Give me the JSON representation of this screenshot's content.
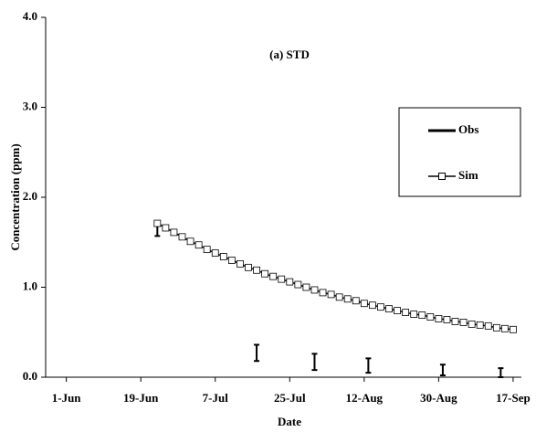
{
  "chart_data": {
    "type": "line",
    "title": "(a) STD",
    "x_label": "Date",
    "y_label": "Concentration (ppm)",
    "xlim": [
      147,
      262
    ],
    "ylim": [
      0,
      4
    ],
    "xticks": [
      {
        "value": 152,
        "label": "1-Jun"
      },
      {
        "value": 170,
        "label": "19-Jun"
      },
      {
        "value": 188,
        "label": "7-Jul"
      },
      {
        "value": 206,
        "label": "25-Jul"
      },
      {
        "value": 224,
        "label": "12-Aug"
      },
      {
        "value": 242,
        "label": "30-Aug"
      },
      {
        "value": 260,
        "label": "17-Sep"
      }
    ],
    "yticks": [
      {
        "value": 0,
        "label": "0.0"
      },
      {
        "value": 1,
        "label": "1.0"
      },
      {
        "value": 2,
        "label": "2.0"
      },
      {
        "value": 3,
        "label": "3.0"
      },
      {
        "value": 4,
        "label": "4.0"
      }
    ],
    "grid": false,
    "legend": "right",
    "series": [
      {
        "name": "Obs",
        "color": "#000000",
        "style": "errorbar",
        "x": [
          174,
          198,
          212,
          225,
          243,
          257
        ],
        "values": [
          1.65,
          0.27,
          0.17,
          0.13,
          0.08,
          0.05
        ],
        "errors": [
          0.08,
          0.09,
          0.09,
          0.08,
          0.06,
          0.05
        ]
      },
      {
        "name": "Sim",
        "color": "#000000",
        "style": "line-square",
        "x": [
          174,
          176,
          178,
          180,
          182,
          184,
          186,
          188,
          190,
          192,
          194,
          196,
          198,
          200,
          202,
          204,
          206,
          208,
          210,
          212,
          214,
          216,
          218,
          220,
          222,
          224,
          226,
          228,
          230,
          232,
          234,
          236,
          238,
          240,
          242,
          244,
          246,
          248,
          250,
          252,
          254,
          256,
          258,
          260
        ],
        "values": [
          1.71,
          1.66,
          1.61,
          1.56,
          1.51,
          1.47,
          1.42,
          1.38,
          1.34,
          1.3,
          1.26,
          1.22,
          1.19,
          1.15,
          1.12,
          1.09,
          1.06,
          1.03,
          1.0,
          0.97,
          0.94,
          0.92,
          0.89,
          0.87,
          0.85,
          0.82,
          0.8,
          0.78,
          0.76,
          0.74,
          0.72,
          0.7,
          0.69,
          0.67,
          0.65,
          0.64,
          0.62,
          0.61,
          0.59,
          0.58,
          0.57,
          0.55,
          0.54,
          0.53
        ]
      }
    ]
  }
}
